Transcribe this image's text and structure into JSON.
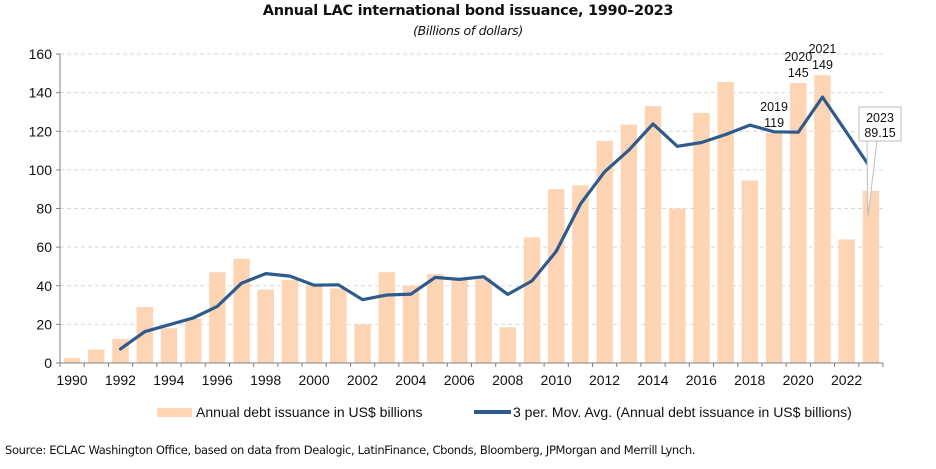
{
  "chart_data": {
    "type": "bar+line",
    "title": "Annual LAC international bond issuance, 1990–2023",
    "subtitle": "(Billions of dollars)",
    "xlabel": "",
    "ylabel": "",
    "ylim": [
      0,
      160
    ],
    "yticks": [
      "0",
      "20",
      "40",
      "60",
      "80",
      "100",
      "120",
      "140",
      "160"
    ],
    "xtick_labels": [
      "1990",
      "1992",
      "1994",
      "1996",
      "1998",
      "2000",
      "2002",
      "2004",
      "2006",
      "2008",
      "2010",
      "2012",
      "2014",
      "2016",
      "2018",
      "2020",
      "2022"
    ],
    "grid": true,
    "legend_position": "bottom",
    "categories": [
      "1990",
      "1991",
      "1992",
      "1993",
      "1994",
      "1995",
      "1996",
      "1997",
      "1998",
      "1999",
      "2000",
      "2001",
      "2002",
      "2003",
      "2004",
      "2005",
      "2006",
      "2007",
      "2008",
      "2009",
      "2010",
      "2011",
      "2012",
      "2013",
      "2014",
      "2015",
      "2016",
      "2017",
      "2018",
      "2019",
      "2020",
      "2021",
      "2022",
      "2023"
    ],
    "series": [
      {
        "name": "Annual debt issuance in US$ billions",
        "type": "bar",
        "color": "#FDD5B4",
        "values": [
          2.5,
          7,
          12.5,
          29,
          18,
          23,
          47,
          54,
          38,
          43,
          40,
          38.5,
          20,
          47,
          40,
          46,
          44,
          44,
          18.5,
          65,
          90,
          92,
          115,
          123.5,
          133,
          80,
          129.5,
          145.5,
          94.5,
          119,
          145,
          149,
          64,
          89.15
        ]
      },
      {
        "name": "3 per. Mov. Avg. (Annual debt issuance in US$ billions)",
        "type": "line",
        "color": "#2E5A8C",
        "values": [
          null,
          null,
          7.3,
          16.2,
          19.8,
          23.3,
          29.3,
          41.3,
          46.3,
          45.0,
          40.3,
          40.5,
          32.8,
          35.2,
          35.7,
          44.3,
          43.3,
          44.7,
          35.5,
          42.5,
          57.8,
          82.3,
          99.0,
          110.2,
          123.8,
          112.2,
          114.2,
          118.3,
          123.2,
          119.7,
          119.5,
          137.7,
          119.3,
          100.7
        ]
      }
    ],
    "annotations": [
      {
        "year": "2019",
        "label_year": "2019",
        "label_value": "119"
      },
      {
        "year": "2020",
        "label_year": "2020",
        "label_value": "145"
      },
      {
        "year": "2021",
        "label_year": "2021",
        "label_value": "149"
      },
      {
        "year": "2023",
        "label_year": "2023",
        "label_value": "89.15",
        "callout": true
      }
    ]
  },
  "legend": {
    "bar_label": "Annual debt issuance in US$ billions",
    "line_label": "3 per. Mov. Avg. (Annual debt issuance in US$ billions)"
  },
  "source": "Source: ECLAC Washington Office, based on data from Dealogic, LatinFinance, Cbonds, Bloomberg, JPMorgan and Merrill Lynch."
}
